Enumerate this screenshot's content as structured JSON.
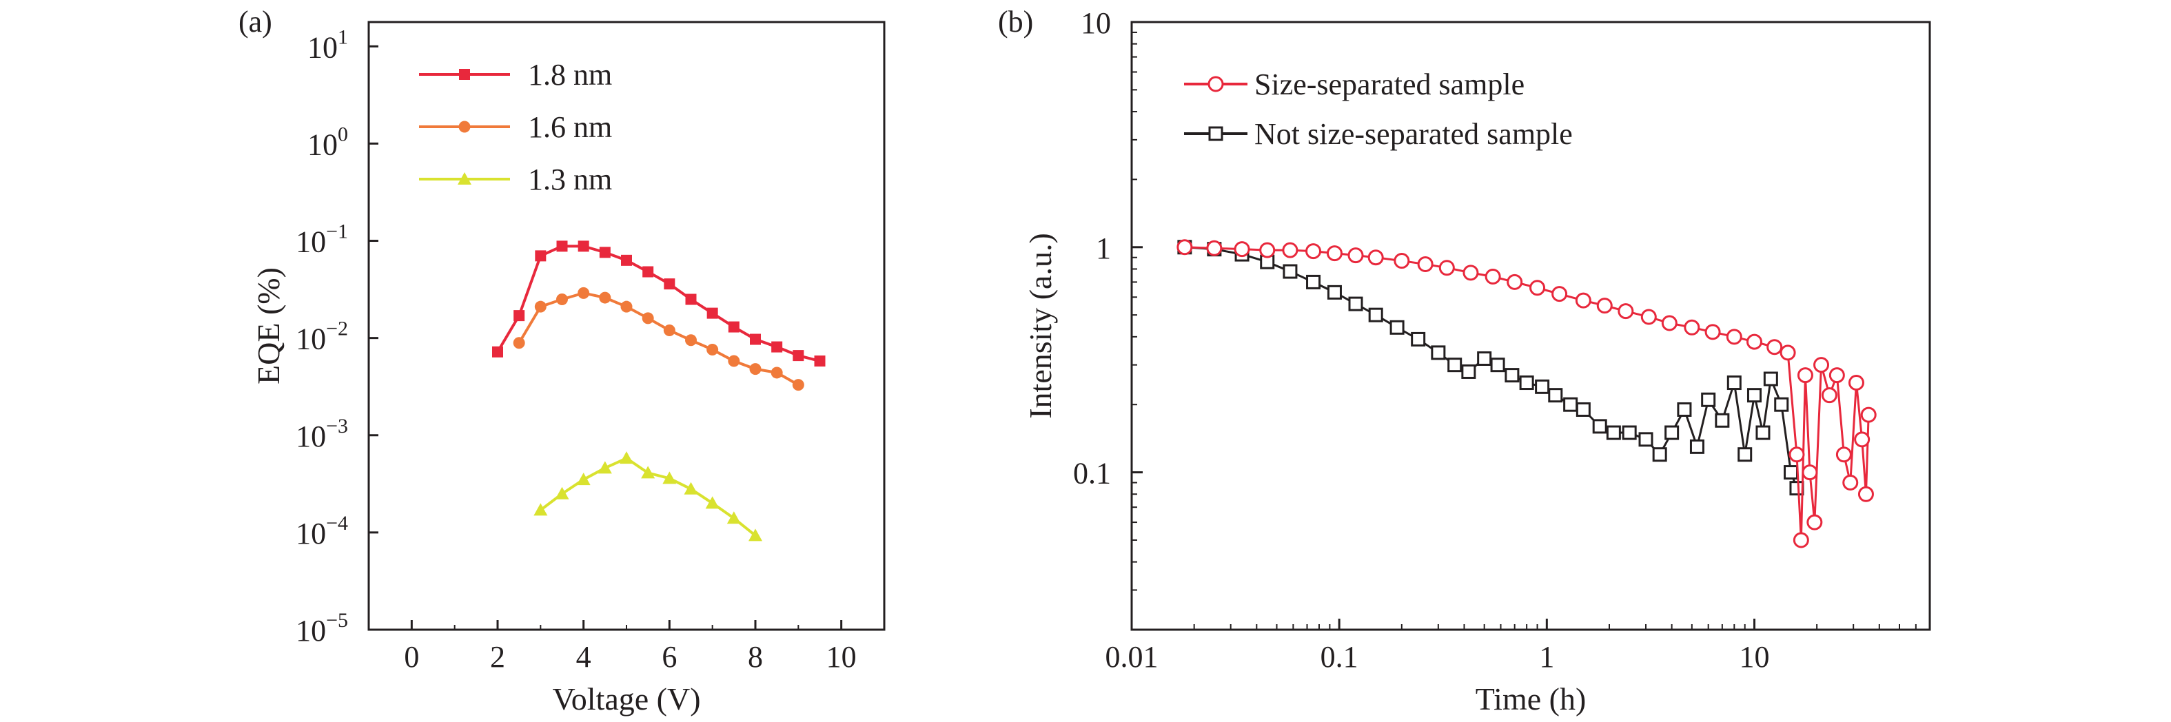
{
  "chart_data": [
    {
      "panel_label": "(a)",
      "type": "line",
      "xlabel": "Voltage (V)",
      "ylabel": "EQE (%)",
      "xlim": [
        -1,
        11
      ],
      "ylim_exponent": [
        -5,
        1.25
      ],
      "y_scale": "log",
      "x_ticks": [
        "0",
        "2",
        "4",
        "6",
        "8",
        "10"
      ],
      "y_tick_labels": [
        {
          "base": "10",
          "exp": "1",
          "value": 1
        },
        {
          "base": "10",
          "exp": "0",
          "value": 0
        },
        {
          "base": "10",
          "exp": "−1",
          "value": -1
        },
        {
          "base": "10",
          "exp": "−2",
          "value": -2
        },
        {
          "base": "10",
          "exp": "−3",
          "value": -3
        },
        {
          "base": "10",
          "exp": "−4",
          "value": -4
        },
        {
          "base": "10",
          "exp": "−5",
          "value": -5
        }
      ],
      "legend_position": "top-left",
      "grid": false,
      "series": [
        {
          "name": "1.8 nm",
          "color": "#e8283c",
          "marker": "square",
          "x": [
            2.0,
            2.5,
            3.0,
            3.5,
            4.0,
            4.5,
            5.0,
            5.5,
            6.0,
            6.5,
            7.0,
            7.5,
            8.0,
            8.5,
            9.0,
            9.5
          ],
          "y": [
            0.0072,
            0.017,
            0.07,
            0.088,
            0.088,
            0.076,
            0.063,
            0.048,
            0.036,
            0.025,
            0.018,
            0.013,
            0.0097,
            0.0081,
            0.0066,
            0.0058
          ]
        },
        {
          "name": "1.6 nm",
          "color": "#f07a3a",
          "marker": "circle",
          "x": [
            2.5,
            3.0,
            3.5,
            4.0,
            4.5,
            5.0,
            5.5,
            6.0,
            6.5,
            7.0,
            7.5,
            8.0,
            8.5,
            9.0
          ],
          "y": [
            0.0089,
            0.021,
            0.025,
            0.029,
            0.026,
            0.021,
            0.016,
            0.012,
            0.0095,
            0.0076,
            0.0058,
            0.0048,
            0.0044,
            0.0033
          ]
        },
        {
          "name": "1.3 nm",
          "color": "#d9e22f",
          "marker": "triangle",
          "x": [
            3.0,
            3.5,
            4.0,
            4.5,
            5.0,
            5.5,
            6.0,
            6.5,
            7.0,
            7.5,
            8.0
          ],
          "y": [
            0.00017,
            0.00025,
            0.00035,
            0.00046,
            0.00058,
            0.00041,
            0.00036,
            0.00028,
            0.0002,
            0.00014,
            9.3e-05
          ]
        }
      ]
    },
    {
      "panel_label": "(b)",
      "type": "scatter",
      "xlabel": "Time (h)",
      "ylabel": "Intensity (a.u.)",
      "x_scale": "log",
      "y_scale": "log",
      "xlim": [
        0.01,
        70
      ],
      "ylim": [
        0.02,
        10
      ],
      "x_ticks": [
        {
          "label": "0.01",
          "value": 0.01
        },
        {
          "label": "0.1",
          "value": 0.1
        },
        {
          "label": "1",
          "value": 1
        },
        {
          "label": "10",
          "value": 10
        }
      ],
      "y_ticks": [
        {
          "label": "0.1",
          "value": 0.1
        },
        {
          "label": "1",
          "value": 1
        },
        {
          "label": "10",
          "value": 10
        }
      ],
      "legend_position": "top-left",
      "grid": false,
      "series": [
        {
          "name": "Size-separated sample",
          "color": "#e8283c",
          "marker": "open-circle",
          "x": [
            0.018,
            0.025,
            0.034,
            0.045,
            0.058,
            0.075,
            0.095,
            0.12,
            0.15,
            0.2,
            0.26,
            0.33,
            0.43,
            0.55,
            0.7,
            0.9,
            1.15,
            1.5,
            1.9,
            2.4,
            3.1,
            3.9,
            5.0,
            6.3,
            8.0,
            10.0,
            12.5,
            14.5,
            16.0,
            16.8,
            17.6,
            18.5,
            19.5,
            21.0,
            23.0,
            25.0,
            27.0,
            29.0,
            31.0,
            33.0,
            34.5,
            35.5
          ],
          "y": [
            1.0,
            0.99,
            0.98,
            0.97,
            0.97,
            0.96,
            0.94,
            0.92,
            0.9,
            0.87,
            0.84,
            0.81,
            0.77,
            0.74,
            0.7,
            0.66,
            0.62,
            0.58,
            0.55,
            0.52,
            0.49,
            0.46,
            0.44,
            0.42,
            0.4,
            0.38,
            0.36,
            0.34,
            0.12,
            0.05,
            0.27,
            0.1,
            0.06,
            0.3,
            0.22,
            0.27,
            0.12,
            0.09,
            0.25,
            0.14,
            0.08,
            0.18
          ]
        },
        {
          "name": "Not size-separated sample",
          "color": "#231f20",
          "marker": "open-square",
          "x": [
            0.018,
            0.025,
            0.034,
            0.045,
            0.058,
            0.075,
            0.095,
            0.12,
            0.15,
            0.19,
            0.24,
            0.3,
            0.36,
            0.42,
            0.5,
            0.58,
            0.68,
            0.8,
            0.95,
            1.1,
            1.3,
            1.5,
            1.8,
            2.1,
            2.5,
            3.0,
            3.5,
            4.0,
            4.6,
            5.3,
            6.0,
            7.0,
            8.0,
            9.0,
            10.0,
            11.0,
            12.0,
            13.5,
            15.0,
            16.0
          ],
          "y": [
            1.0,
            0.98,
            0.93,
            0.86,
            0.78,
            0.7,
            0.63,
            0.56,
            0.5,
            0.44,
            0.39,
            0.34,
            0.3,
            0.28,
            0.32,
            0.3,
            0.27,
            0.25,
            0.24,
            0.22,
            0.2,
            0.19,
            0.16,
            0.15,
            0.15,
            0.14,
            0.12,
            0.15,
            0.19,
            0.13,
            0.21,
            0.17,
            0.25,
            0.12,
            0.22,
            0.15,
            0.26,
            0.2,
            0.1,
            0.085
          ]
        }
      ]
    }
  ]
}
